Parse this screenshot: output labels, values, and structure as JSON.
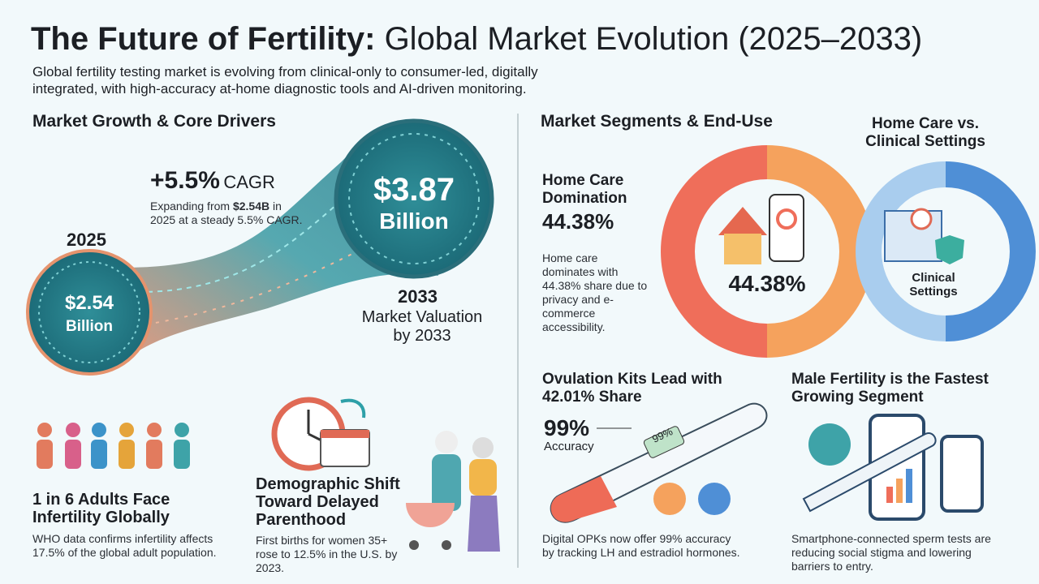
{
  "header": {
    "title_bold": "The Future of Fertility:",
    "title_rest": "Global Market Evolution (2025–2033)",
    "subtitle": "Global fertility testing market is evolving from clinical-only to consumer-led, digitally integrated, with high-accuracy at-home diagnostic tools and AI-driven monitoring."
  },
  "growth": {
    "heading": "Market Growth & Core Drivers",
    "cagr_value": "+5.5%",
    "cagr_label": "CAGR",
    "cagr_note": [
      "Expanding from ",
      "$2.54B",
      " in 2025 at a steady 5.5% CAGR."
    ],
    "start": {
      "year": "2025",
      "value": "$2.54",
      "unit": "Billion"
    },
    "end": {
      "value": "$3.87",
      "unit": "Billion",
      "year": "2033",
      "caption": "Market Valuation by 2033"
    }
  },
  "drivers": [
    {
      "title": "1 in 6 Adults Face Infertility Globally",
      "text": "WHO data confirms infertility affects 17.5% of the global adult population."
    },
    {
      "title": "Demographic Shift Toward Delayed Parenthood",
      "text": "First births for women 35+ rose to 12.5% in the U.S. by 2023."
    }
  ],
  "segments": {
    "heading": "Market Segments & End-Use",
    "donut_title": "Home Care vs. Clinical Settings",
    "home_care": {
      "title": "Home Care Domination",
      "value": "44.38%",
      "text": "Home care dominates with 44.38% share due to privacy and e-commerce accessibility."
    },
    "donut_center": "44.38%",
    "clinical_label": "Clinical Settings"
  },
  "ovulation": {
    "title": "Ovulation Kits Lead with 42.01% Share",
    "accuracy_value": "99%",
    "accuracy_label": "Accuracy",
    "display": "99%",
    "text": "Digital OPKs now offer 99% accuracy by tracking LH and estradiol hormones."
  },
  "male": {
    "title": "Male Fertility is the Fastest Growing Segment",
    "text": "Smartphone-connected sperm tests are reducing social stigma and lowering barriers to entry."
  }
}
